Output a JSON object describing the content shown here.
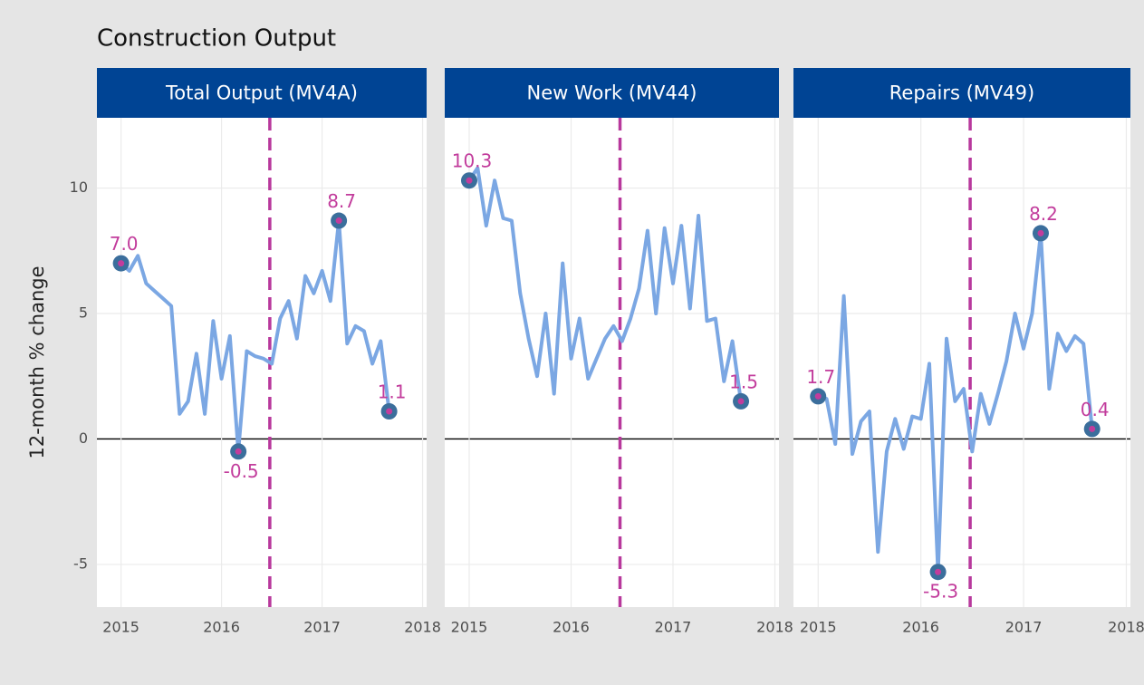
{
  "title": "Construction Output",
  "y_label": "12-month % change",
  "chart_data": [
    {
      "type": "line",
      "title": "Total Output (MV4A)",
      "x": [
        2015,
        2015.083,
        2015.167,
        2015.25,
        2015.333,
        2015.417,
        2015.5,
        2015.583,
        2015.667,
        2015.75,
        2015.833,
        2015.917,
        2016,
        2016.083,
        2016.167,
        2016.25,
        2016.333,
        2016.417,
        2016.5,
        2016.583,
        2016.667,
        2016.75,
        2016.833,
        2016.917,
        2017,
        2017.083,
        2017.167,
        2017.25,
        2017.333,
        2017.417,
        2017.5,
        2017.583,
        2017.667
      ],
      "values": [
        7.0,
        6.7,
        7.3,
        6.2,
        5.9,
        5.6,
        5.3,
        1.0,
        1.5,
        3.4,
        1.0,
        4.7,
        2.4,
        4.1,
        -0.5,
        3.5,
        3.3,
        3.2,
        3.0,
        4.8,
        5.5,
        4.0,
        6.5,
        5.8,
        6.7,
        5.5,
        8.7,
        3.8,
        4.5,
        4.3,
        3.0,
        3.9,
        1.1
      ],
      "value_labels": [
        "7.0",
        null,
        null,
        null,
        null,
        null,
        null,
        null,
        null,
        null,
        null,
        null,
        null,
        null,
        "-0.5",
        null,
        null,
        null,
        null,
        null,
        null,
        null,
        null,
        null,
        null,
        null,
        "8.7",
        null,
        null,
        null,
        null,
        null,
        "1.1"
      ],
      "color": "#7ba7e3",
      "point_color": "#3b6e9c",
      "label_color": "#c23c9c",
      "vline": 2016.48,
      "vline_color": "#b8389c",
      "xlim": [
        2014.76,
        2018.04
      ],
      "xticks": [
        2015,
        2016,
        2017,
        2018
      ],
      "ylim": [
        -6.7,
        12.8
      ],
      "yticks": [
        -5,
        0,
        5,
        10
      ],
      "grid": true
    },
    {
      "type": "line",
      "title": "New Work (MV44)",
      "x": [
        2015,
        2015.083,
        2015.167,
        2015.25,
        2015.333,
        2015.417,
        2015.5,
        2015.583,
        2015.667,
        2015.75,
        2015.833,
        2015.917,
        2016,
        2016.083,
        2016.167,
        2016.25,
        2016.333,
        2016.417,
        2016.5,
        2016.583,
        2016.667,
        2016.75,
        2016.833,
        2016.917,
        2017,
        2017.083,
        2017.167,
        2017.25,
        2017.333,
        2017.417,
        2017.5,
        2017.583,
        2017.667
      ],
      "values": [
        10.3,
        10.8,
        8.5,
        10.3,
        8.8,
        8.7,
        5.8,
        4.0,
        2.5,
        5.0,
        1.8,
        7.0,
        3.2,
        4.8,
        2.4,
        3.2,
        4.0,
        4.5,
        3.9,
        4.8,
        6.0,
        8.3,
        5.0,
        8.4,
        6.2,
        8.5,
        5.2,
        8.9,
        4.7,
        4.8,
        2.3,
        3.9,
        1.5
      ],
      "value_labels": [
        "10.3",
        null,
        null,
        null,
        null,
        null,
        null,
        null,
        null,
        null,
        null,
        null,
        null,
        null,
        null,
        null,
        null,
        null,
        null,
        null,
        null,
        null,
        null,
        null,
        null,
        null,
        null,
        null,
        null,
        null,
        null,
        null,
        "1.5"
      ],
      "color": "#7ba7e3",
      "point_color": "#3b6e9c",
      "label_color": "#c23c9c",
      "vline": 2016.48,
      "vline_color": "#b8389c",
      "xlim": [
        2014.76,
        2018.04
      ],
      "xticks": [
        2015,
        2016,
        2017,
        2018
      ],
      "ylim": [
        -6.7,
        12.8
      ],
      "yticks": [
        -5,
        0,
        5,
        10
      ],
      "grid": true
    },
    {
      "type": "line",
      "title": "Repairs (MV49)",
      "x": [
        2015,
        2015.083,
        2015.167,
        2015.25,
        2015.333,
        2015.417,
        2015.5,
        2015.583,
        2015.667,
        2015.75,
        2015.833,
        2015.917,
        2016,
        2016.083,
        2016.167,
        2016.25,
        2016.333,
        2016.417,
        2016.5,
        2016.583,
        2016.667,
        2016.75,
        2016.833,
        2016.917,
        2017,
        2017.083,
        2017.167,
        2017.25,
        2017.333,
        2017.417,
        2017.5,
        2017.583,
        2017.667
      ],
      "values": [
        1.7,
        1.6,
        -0.2,
        5.7,
        -0.6,
        0.7,
        1.1,
        -4.5,
        -0.5,
        0.8,
        -0.4,
        0.9,
        0.8,
        3.0,
        -5.3,
        4.0,
        1.5,
        2.0,
        -0.5,
        1.8,
        0.6,
        1.8,
        3.1,
        5.0,
        3.6,
        5.0,
        8.2,
        2.0,
        4.2,
        3.5,
        4.1,
        3.8,
        0.4
      ],
      "value_labels": [
        "1.7",
        null,
        null,
        null,
        null,
        null,
        null,
        null,
        null,
        null,
        null,
        null,
        null,
        null,
        "-5.3",
        null,
        null,
        null,
        null,
        null,
        null,
        null,
        null,
        null,
        null,
        null,
        "8.2",
        null,
        null,
        null,
        null,
        null,
        "0.4"
      ],
      "color": "#7ba7e3",
      "point_color": "#3b6e9c",
      "label_color": "#c23c9c",
      "vline": 2016.48,
      "vline_color": "#b8389c",
      "xlim": [
        2014.76,
        2018.04
      ],
      "xticks": [
        2015,
        2016,
        2017,
        2018
      ],
      "ylim": [
        -6.7,
        12.8
      ],
      "yticks": [
        -5,
        0,
        5,
        10
      ],
      "grid": true
    }
  ]
}
